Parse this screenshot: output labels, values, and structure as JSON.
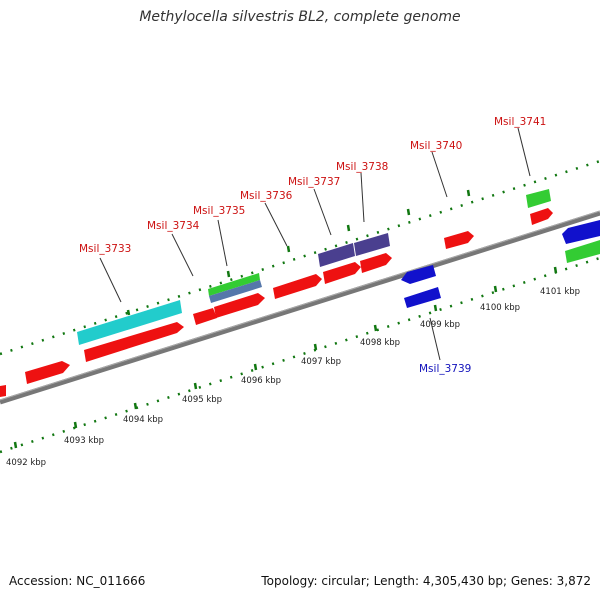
{
  "title": "Methylocella silvestris BL2, complete genome",
  "footer": {
    "accession": "Accession: NC_011666",
    "summary": "Topology: circular; Length: 4,305,430 bp; Genes: 3,872"
  },
  "colors": {
    "forward_gene": "#ee1111",
    "reverse_gene": "#1111cc",
    "label_forward": "#cc1111",
    "label_reverse": "#1111bb",
    "tick": "#117711",
    "backbone": "#888888",
    "cyan": "#22cccc",
    "green": "#33cc33",
    "purple": "#4a3f8f",
    "steelblue": "#5577aa"
  },
  "scale_labels": [
    "4092 kbp",
    "4093 kbp",
    "4094 kbp",
    "4095 kbp",
    "4096 kbp",
    "4097 kbp",
    "4098 kbp",
    "4099 kbp",
    "4100 kbp",
    "4101 kbp"
  ],
  "gene_labels": [
    "Msil_3733",
    "Msil_3734",
    "Msil_3735",
    "Msil_3736",
    "Msil_3737",
    "Msil_3738",
    "Msil_3739",
    "Msil_3740",
    "Msil_3741"
  ]
}
